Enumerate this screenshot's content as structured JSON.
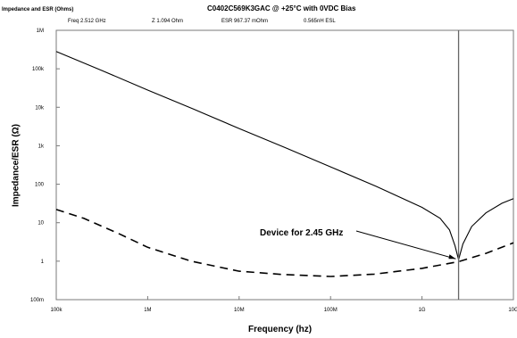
{
  "header": {
    "panel_label": "Impedance and ESR (Ohms)",
    "title": "C0402C569K3GAC @ +25°C with 0VDC Bias",
    "readouts": {
      "freq": "Freq 2.512 GHz",
      "z": "Z 1.094 Ohm",
      "esr": "ESR 967.37 mOhm",
      "esl": "0.565nH ESL"
    }
  },
  "chart_data": {
    "type": "line",
    "title": "C0402C569K3GAC @ +25°C with 0VDC Bias",
    "xlabel": "Frequency (hz)",
    "ylabel": "Impedance/ESR (Ω)",
    "xscale": "log",
    "yscale": "log",
    "xlim": [
      100000,
      10000000000
    ],
    "ylim": [
      0.1,
      1000000
    ],
    "x_ticks": [
      {
        "value": 100000,
        "label": "100k"
      },
      {
        "value": 1000000,
        "label": "1M"
      },
      {
        "value": 10000000,
        "label": "10M"
      },
      {
        "value": 100000000,
        "label": "100M"
      },
      {
        "value": 1000000000,
        "label": "1G"
      },
      {
        "value": 10000000000,
        "label": "10G"
      }
    ],
    "y_ticks": [
      {
        "value": 1000000,
        "label": "1M"
      },
      {
        "value": 100000,
        "label": "100k"
      },
      {
        "value": 10000,
        "label": "10k"
      },
      {
        "value": 1000,
        "label": "1k"
      },
      {
        "value": 100,
        "label": "100"
      },
      {
        "value": 10,
        "label": "10"
      },
      {
        "value": 1,
        "label": "1"
      },
      {
        "value": 0.1,
        "label": "100m"
      }
    ],
    "grid": false,
    "series": [
      {
        "style": "solid",
        "x": [
          100000,
          316000,
          1000000,
          3160000,
          10000000,
          31600000,
          100000000,
          316000000,
          1000000000,
          1580000000,
          2000000000,
          2300000000,
          2512000000,
          2800000000,
          3500000000,
          5000000000,
          7500000000,
          10000000000
        ],
        "y": [
          283000,
          90000,
          28000,
          9000,
          2800,
          900,
          283,
          88,
          25,
          13,
          6.5,
          2.5,
          1.09,
          2.8,
          8,
          18,
          32,
          42
        ]
      },
      {
        "style": "dashed",
        "x": [
          100000,
          200000,
          500000,
          1000000,
          3000000,
          10000000,
          30000000,
          100000000,
          300000000,
          1000000000,
          2512000000,
          5000000000,
          10000000000
        ],
        "y": [
          22,
          13,
          5,
          2.3,
          1.0,
          0.55,
          0.45,
          0.4,
          0.46,
          0.65,
          0.97,
          1.6,
          3.0
        ]
      }
    ],
    "marker_x": 2512000000,
    "annotation": {
      "text": "Device for 2.45 GHz",
      "x": 2450000000,
      "y": 1.09
    }
  },
  "colors": {
    "background": "#ffffff",
    "axis": "#7a7a7a",
    "curve": "#000000",
    "marker": "#666666"
  }
}
